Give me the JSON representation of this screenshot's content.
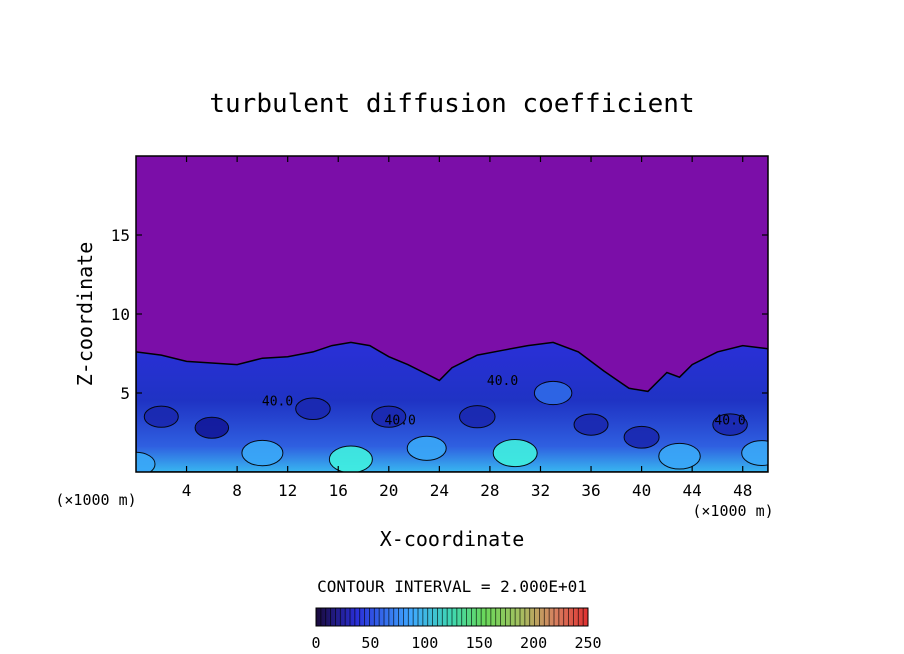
{
  "chart_data": {
    "type": "heatmap",
    "title": "turbulent diffusion coefficient",
    "xlabel": "X-coordinate",
    "ylabel": "Z-coordinate",
    "x_unit_left": "(×1000 m)",
    "x_unit_right": "(×1000 m)",
    "x_ticks": [
      "4",
      "8",
      "12",
      "16",
      "20",
      "24",
      "28",
      "32",
      "36",
      "40",
      "44",
      "48"
    ],
    "x_tick_values": [
      4,
      8,
      12,
      16,
      20,
      24,
      28,
      32,
      36,
      40,
      44,
      48
    ],
    "y_ticks": [
      "5",
      "10",
      "15"
    ],
    "y_tick_values": [
      5,
      10,
      15
    ],
    "xlim": [
      0,
      50
    ],
    "ylim": [
      0,
      20
    ],
    "contour_interval_label": "CONTOUR INTERVAL = 2.000E+01",
    "contour_interval": 20,
    "colorbar_ticks": [
      "0",
      "50",
      "100",
      "150",
      "200",
      "250"
    ],
    "colorbar_values": [
      0,
      50,
      100,
      150,
      200,
      250
    ],
    "colorbar_range": [
      0,
      250
    ],
    "contour_labels": [
      {
        "text": "40.0",
        "x": 11.2,
        "z": 4.2
      },
      {
        "text": "40.0",
        "x": 20.9,
        "z": 3.0
      },
      {
        "text": "40.0",
        "x": 29.0,
        "z": 5.5
      },
      {
        "text": "40.0",
        "x": 47.0,
        "z": 3.0
      }
    ],
    "background_value": 0,
    "boundary_height": [
      [
        0,
        7.6
      ],
      [
        2,
        7.4
      ],
      [
        4,
        7.0
      ],
      [
        6,
        6.9
      ],
      [
        8,
        6.8
      ],
      [
        10,
        7.2
      ],
      [
        12,
        7.3
      ],
      [
        14,
        7.6
      ],
      [
        15.5,
        8.0
      ],
      [
        17,
        8.2
      ],
      [
        18.5,
        8.0
      ],
      [
        20,
        7.3
      ],
      [
        21.5,
        6.8
      ],
      [
        23,
        6.2
      ],
      [
        24,
        5.8
      ],
      [
        25,
        6.6
      ],
      [
        27,
        7.4
      ],
      [
        29,
        7.7
      ],
      [
        31,
        8.0
      ],
      [
        33,
        8.2
      ],
      [
        35,
        7.6
      ],
      [
        37,
        6.4
      ],
      [
        39,
        5.3
      ],
      [
        40.5,
        5.1
      ],
      [
        42,
        6.3
      ],
      [
        43,
        6.0
      ],
      [
        44,
        6.8
      ],
      [
        46,
        7.6
      ],
      [
        48,
        8.0
      ],
      [
        50,
        7.8
      ]
    ],
    "series": [
      {
        "values": [
          [
            0,
            0.5,
            60
          ],
          [
            2,
            3.5,
            20
          ],
          [
            6,
            2.8,
            15
          ],
          [
            10,
            1.2,
            90
          ],
          [
            14,
            4.0,
            25
          ],
          [
            17,
            0.8,
            110
          ],
          [
            20,
            3.5,
            20
          ],
          [
            23,
            1.5,
            70
          ],
          [
            27,
            3.5,
            35
          ],
          [
            30,
            1.2,
            120
          ],
          [
            33,
            5.0,
            55
          ],
          [
            36,
            3.0,
            20
          ],
          [
            40,
            2.2,
            30
          ],
          [
            43,
            1.0,
            95
          ],
          [
            47,
            3.0,
            25
          ],
          [
            49.5,
            1.2,
            80
          ]
        ]
      }
    ]
  }
}
